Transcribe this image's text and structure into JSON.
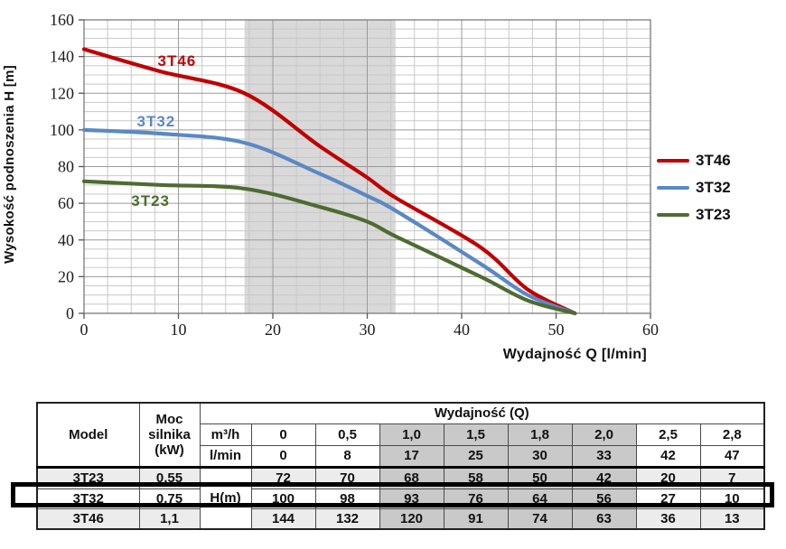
{
  "chart_data": {
    "type": "line",
    "title": "",
    "xlabel": "Wydajność Q [l/min]",
    "ylabel": "Wysokość podnoszenia H [m]",
    "xlim": [
      0,
      60
    ],
    "ylim": [
      0,
      160
    ],
    "x_ticks": [
      0,
      10,
      20,
      30,
      40,
      50,
      60
    ],
    "y_ticks": [
      0,
      20,
      40,
      60,
      80,
      100,
      120,
      140,
      160
    ],
    "x_minor_step": 2.5,
    "y_minor_step": 5,
    "grid": true,
    "legend_position": "right",
    "highlight_band_x": [
      17,
      33
    ],
    "band_color": "#d9d9d9",
    "x": [
      0,
      8,
      17,
      25,
      30,
      33,
      42,
      47,
      52
    ],
    "series": [
      {
        "name": "3T46",
        "color": "#c00000",
        "values": [
          144,
          132,
          120,
          91,
          74,
          63,
          36,
          13,
          0
        ],
        "label_at": [
          7.8,
          135
        ]
      },
      {
        "name": "3T32",
        "color": "#5b88c5",
        "values": [
          100,
          98,
          93,
          76,
          64,
          56,
          27,
          10,
          0
        ],
        "label_at": [
          5.6,
          102
        ]
      },
      {
        "name": "3T23",
        "color": "#4e6b31",
        "values": [
          72,
          70,
          68,
          58,
          50,
          42,
          20,
          7,
          0
        ],
        "label_at": [
          5.0,
          58.5
        ]
      }
    ]
  },
  "legend": {
    "items": [
      {
        "label": "3T46",
        "color": "#c00000"
      },
      {
        "label": "3T32",
        "color": "#5b88c5"
      },
      {
        "label": "3T23",
        "color": "#4e6b31"
      }
    ]
  },
  "table": {
    "headers": {
      "model": "Model",
      "power": "Moc silnika (kW)",
      "flow_group": "Wydajność (Q)",
      "unit_m3h": "m³/h",
      "unit_lmin": "l/min",
      "h_label": "H(m)"
    },
    "flow_m3h": [
      "0",
      "0,5",
      "1,0",
      "1,5",
      "1,8",
      "2,0",
      "2,5",
      "2,8"
    ],
    "flow_lmin": [
      "0",
      "8",
      "17",
      "25",
      "30",
      "33",
      "42",
      "47"
    ],
    "shaded_col_indexes": [
      2,
      3,
      4,
      5
    ],
    "rows": [
      {
        "model": "3T23",
        "power": "0,55",
        "h": [
          "72",
          "70",
          "68",
          "58",
          "50",
          "42",
          "20",
          "7"
        ],
        "shaded_row": true,
        "highlight": false
      },
      {
        "model": "3T32",
        "power": "0,75",
        "h": [
          "100",
          "98",
          "93",
          "76",
          "64",
          "56",
          "27",
          "10"
        ],
        "shaded_row": false,
        "highlight": true
      },
      {
        "model": "3T46",
        "power": "1,1",
        "h": [
          "144",
          "132",
          "120",
          "91",
          "74",
          "63",
          "36",
          "13"
        ],
        "shaded_row": true,
        "highlight": false
      }
    ],
    "colors": {
      "shaded_column": "#c9c9c9",
      "shaded_row": "#ececec",
      "highlight_border": "#000000"
    }
  }
}
